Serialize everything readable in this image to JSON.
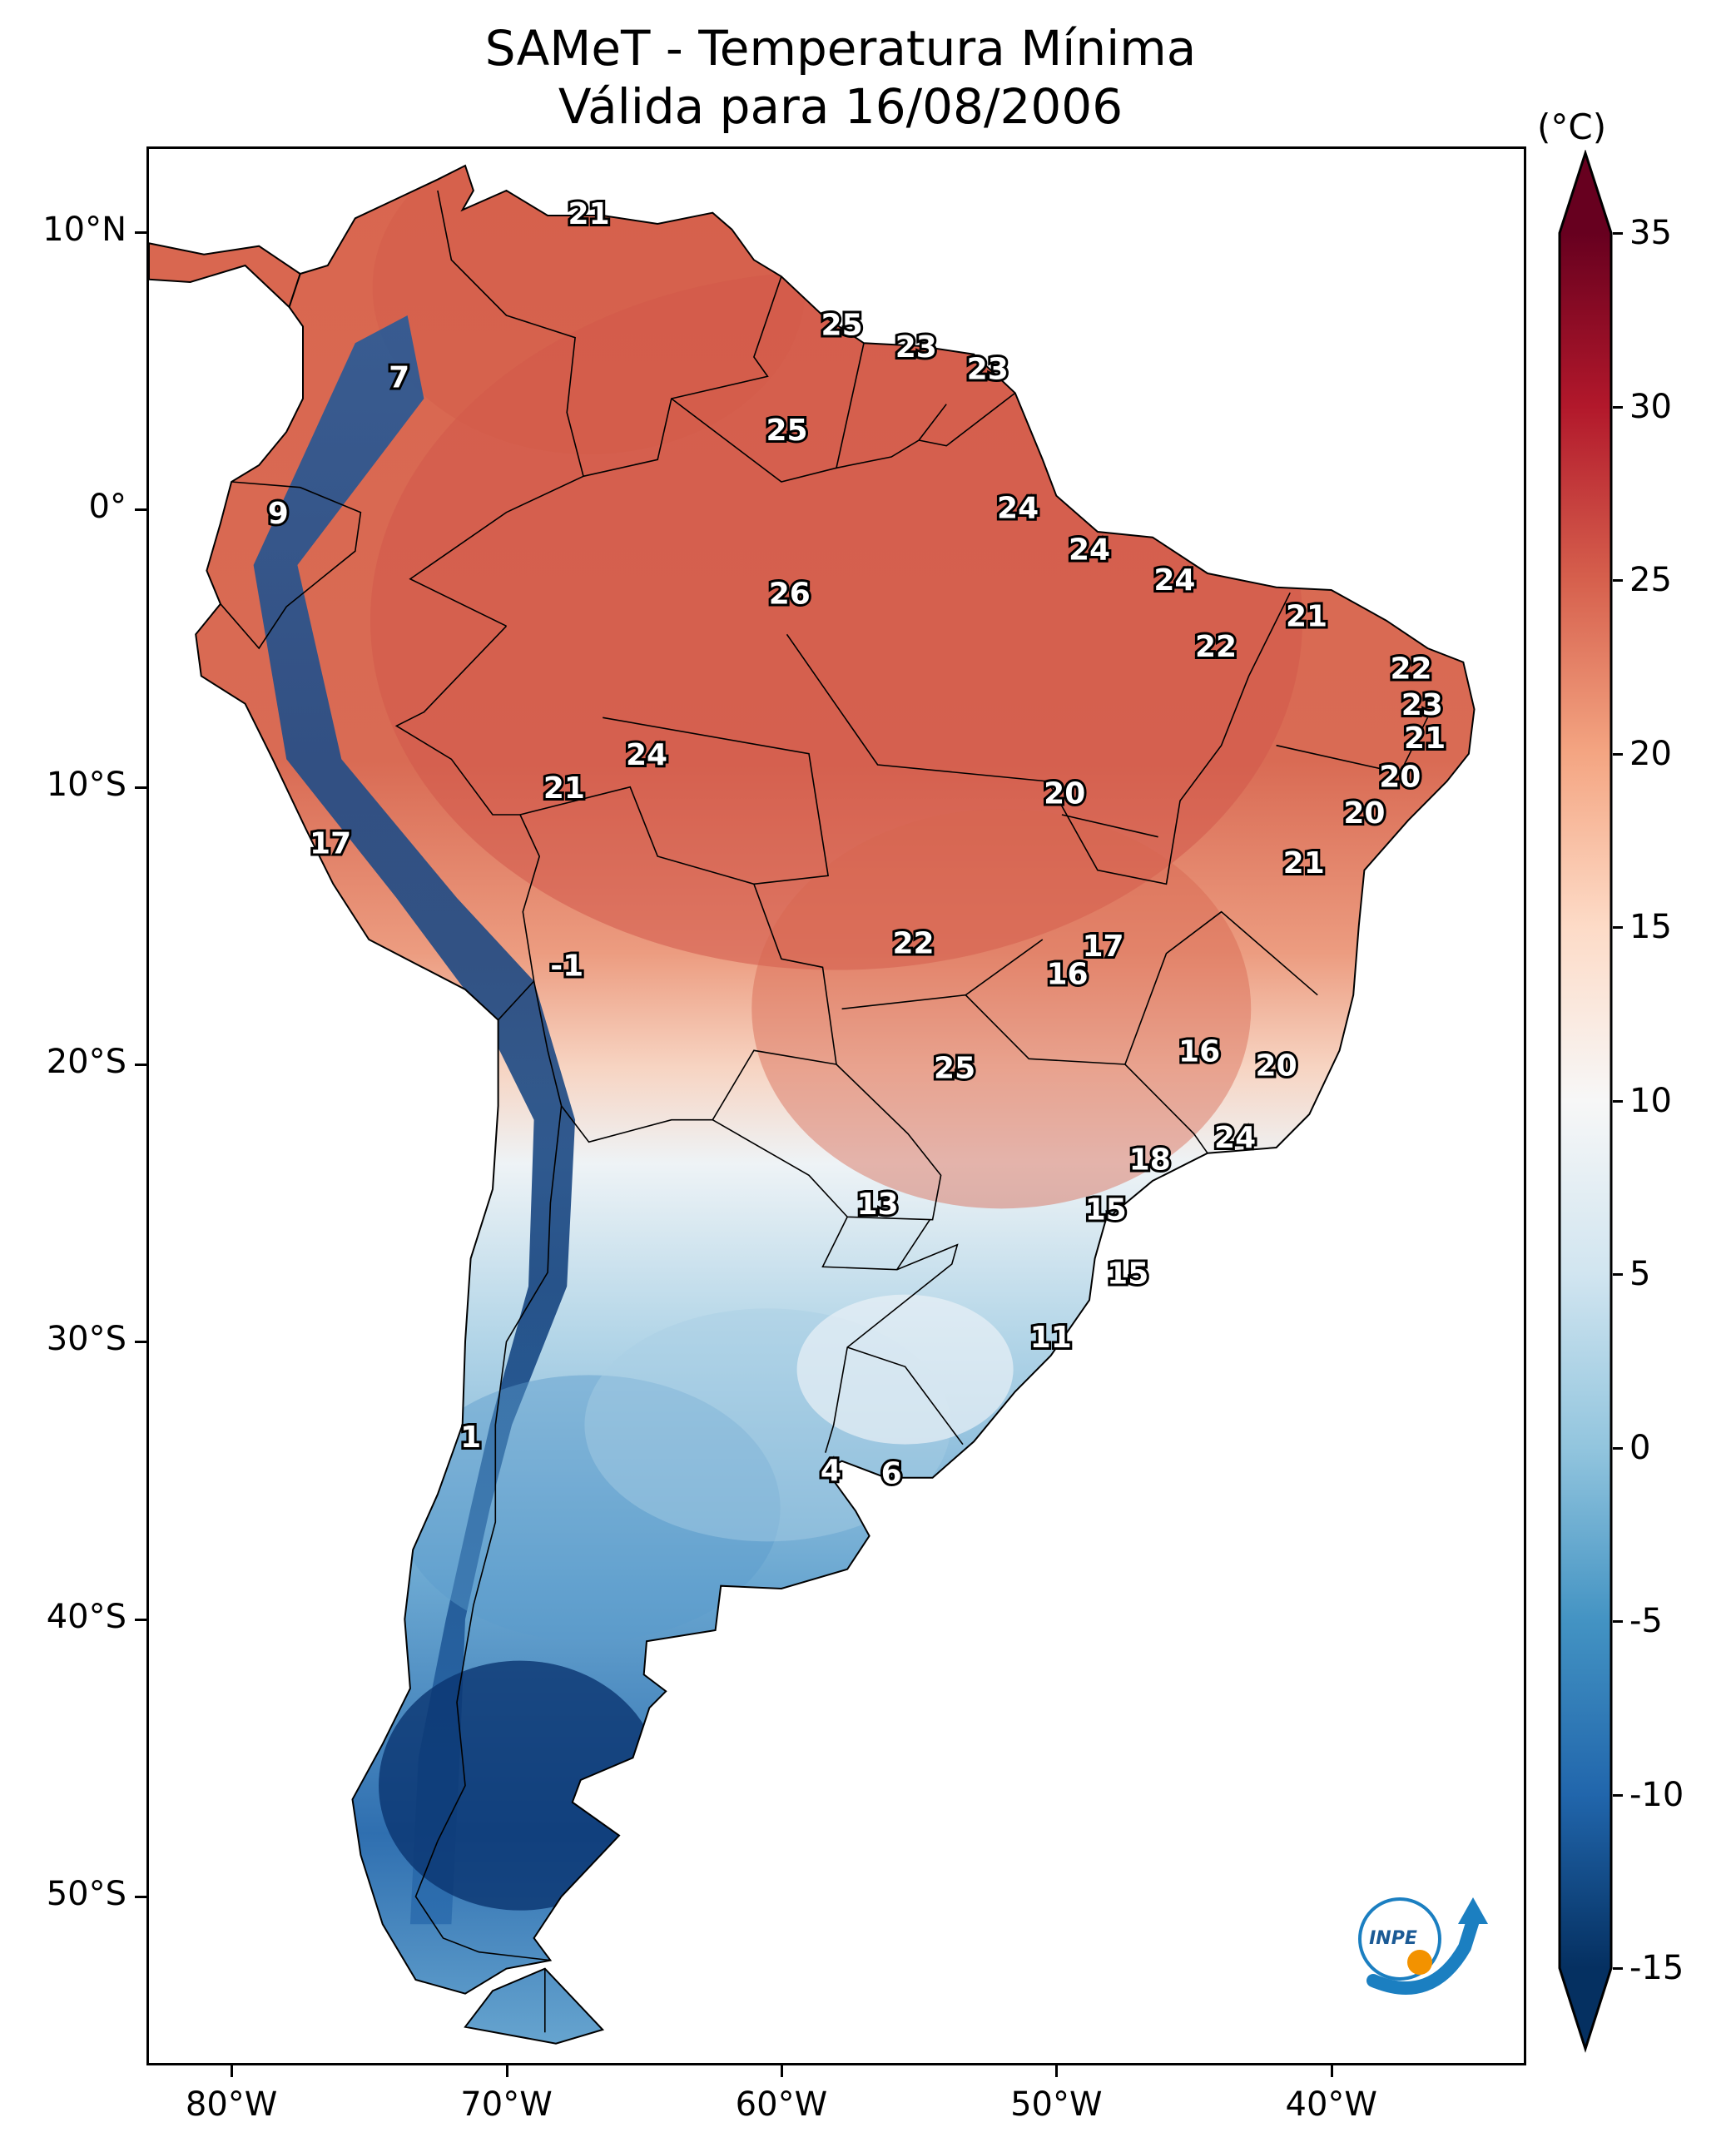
{
  "title_line1": "SAMeT - Temperatura Mínima",
  "title_line2": "Válida para 16/08/2006",
  "colorbar": {
    "unit": "(°C)",
    "min": -15,
    "max": 35,
    "ticks": [
      "35",
      "30",
      "25",
      "20",
      "15",
      "10",
      "5",
      "0",
      "-5",
      "-10",
      "-15"
    ],
    "tick_values": [
      35,
      30,
      25,
      20,
      15,
      10,
      5,
      0,
      -5,
      -10,
      -15
    ],
    "colormap": "RdBu_r",
    "colors": [
      "#053061",
      "#2166ac",
      "#4393c3",
      "#92c5de",
      "#d1e5f0",
      "#f7f7f7",
      "#fddbc7",
      "#f4a582",
      "#d6604d",
      "#b2182b",
      "#67001f"
    ]
  },
  "axes": {
    "lat_ticks": [
      "10°N",
      "0°",
      "10°S",
      "20°S",
      "30°S",
      "40°S",
      "50°S"
    ],
    "lon_ticks": [
      "80°W",
      "70°W",
      "60°W",
      "50°W",
      "40°W"
    ]
  },
  "chart_data": {
    "type": "map",
    "variable": "Temperatura Mínima",
    "extent": {
      "lon": [
        -83,
        -33
      ],
      "lat": [
        -56,
        13
      ]
    },
    "station_labels": [
      {
        "text": "21",
        "lon": -67.0,
        "lat": 10.6
      },
      {
        "text": "25",
        "lon": -57.8,
        "lat": 6.6
      },
      {
        "text": "23",
        "lon": -55.1,
        "lat": 5.8
      },
      {
        "text": "23",
        "lon": -52.5,
        "lat": 5.0
      },
      {
        "text": "7",
        "lon": -73.9,
        "lat": 4.7
      },
      {
        "text": "25",
        "lon": -59.8,
        "lat": 2.8
      },
      {
        "text": "9",
        "lon": -78.3,
        "lat": -0.2
      },
      {
        "text": "24",
        "lon": -51.4,
        "lat": 0.0
      },
      {
        "text": "24",
        "lon": -48.8,
        "lat": -1.5
      },
      {
        "text": "24",
        "lon": -45.7,
        "lat": -2.6
      },
      {
        "text": "26",
        "lon": -59.7,
        "lat": -3.1
      },
      {
        "text": "21",
        "lon": -40.9,
        "lat": -3.9
      },
      {
        "text": "22",
        "lon": -44.2,
        "lat": -5.0
      },
      {
        "text": "22",
        "lon": -37.1,
        "lat": -5.8
      },
      {
        "text": "23",
        "lon": -36.7,
        "lat": -7.1
      },
      {
        "text": "21",
        "lon": -36.6,
        "lat": -8.3
      },
      {
        "text": "24",
        "lon": -64.9,
        "lat": -8.9
      },
      {
        "text": "20",
        "lon": -37.5,
        "lat": -9.7
      },
      {
        "text": "21",
        "lon": -67.9,
        "lat": -10.1
      },
      {
        "text": "20",
        "lon": -49.7,
        "lat": -10.3
      },
      {
        "text": "20",
        "lon": -38.8,
        "lat": -11.0
      },
      {
        "text": "17",
        "lon": -76.4,
        "lat": -12.1
      },
      {
        "text": "21",
        "lon": -41.0,
        "lat": -12.8
      },
      {
        "text": "22",
        "lon": -55.2,
        "lat": -15.7
      },
      {
        "text": "17",
        "lon": -48.3,
        "lat": -15.8
      },
      {
        "text": "16",
        "lon": -49.6,
        "lat": -16.8
      },
      {
        "text": "-1",
        "lon": -67.8,
        "lat": -16.5
      },
      {
        "text": "16",
        "lon": -44.8,
        "lat": -19.6
      },
      {
        "text": "20",
        "lon": -42.0,
        "lat": -20.1
      },
      {
        "text": "25",
        "lon": -53.7,
        "lat": -20.2
      },
      {
        "text": "24",
        "lon": -43.5,
        "lat": -22.7
      },
      {
        "text": "18",
        "lon": -46.6,
        "lat": -23.5
      },
      {
        "text": "13",
        "lon": -56.5,
        "lat": -25.1
      },
      {
        "text": "15",
        "lon": -48.2,
        "lat": -25.3
      },
      {
        "text": "15",
        "lon": -47.4,
        "lat": -27.6
      },
      {
        "text": "11",
        "lon": -50.2,
        "lat": -29.9
      },
      {
        "text": "1",
        "lon": -71.3,
        "lat": -33.5
      },
      {
        "text": "4",
        "lon": -58.2,
        "lat": -34.7
      },
      {
        "text": "6",
        "lon": -56.0,
        "lat": -34.8
      }
    ]
  },
  "logo": {
    "text": "INPE"
  }
}
